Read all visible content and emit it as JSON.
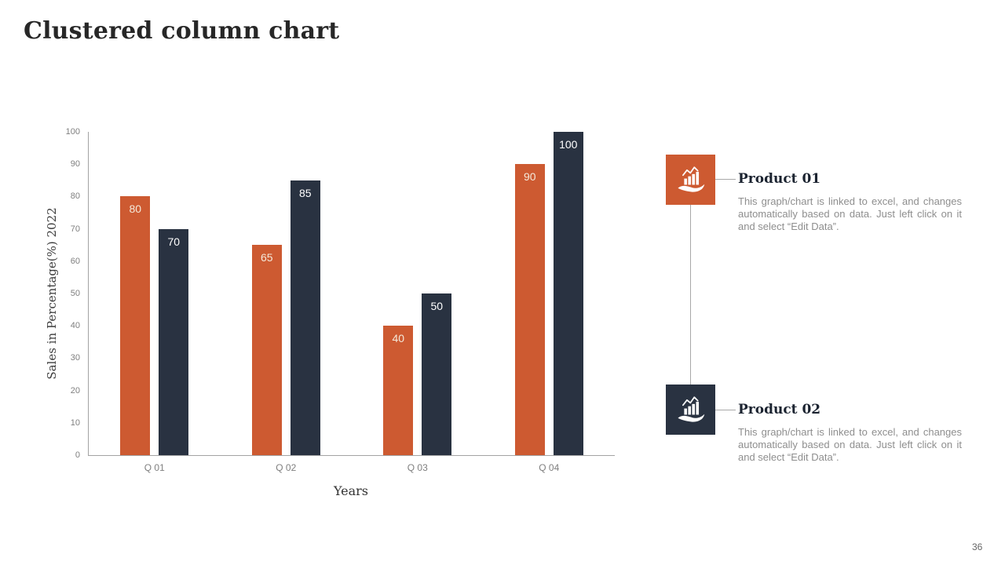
{
  "slide": {
    "title": "Clustered column chart",
    "page_number": "36"
  },
  "chart_data": {
    "type": "bar",
    "title": "",
    "categories": [
      "Q 01",
      "Q 02",
      "Q 03",
      "Q 04"
    ],
    "series": [
      {
        "name": "Product 01",
        "color": "#cd5a31",
        "label_color": "#f4e9da",
        "values": [
          80,
          65,
          40,
          90
        ]
      },
      {
        "name": "Product 02",
        "color": "#293241",
        "label_color": "#ffffff",
        "values": [
          70,
          85,
          50,
          100
        ]
      }
    ],
    "xlabel": "Years",
    "ylabel": "Sales in Percentage(%) 2022",
    "ylim": [
      0,
      100
    ],
    "ytick_step": 10,
    "grid": false,
    "legend_position": "none",
    "bar_value_labels": "inside-top"
  },
  "legend_panel": {
    "items": [
      {
        "title": "Product 01",
        "description": "This graph/chart is linked to excel, and changes automatically based on data. Just left click on it and select “Edit Data”.",
        "color": "#cd5a31",
        "icon": "chart-in-hand-icon"
      },
      {
        "title": "Product 02",
        "description": "This graph/chart is linked to excel, and changes automatically based on data. Just left click on it and select “Edit Data”.",
        "color": "#293241",
        "icon": "chart-in-hand-icon"
      }
    ]
  }
}
